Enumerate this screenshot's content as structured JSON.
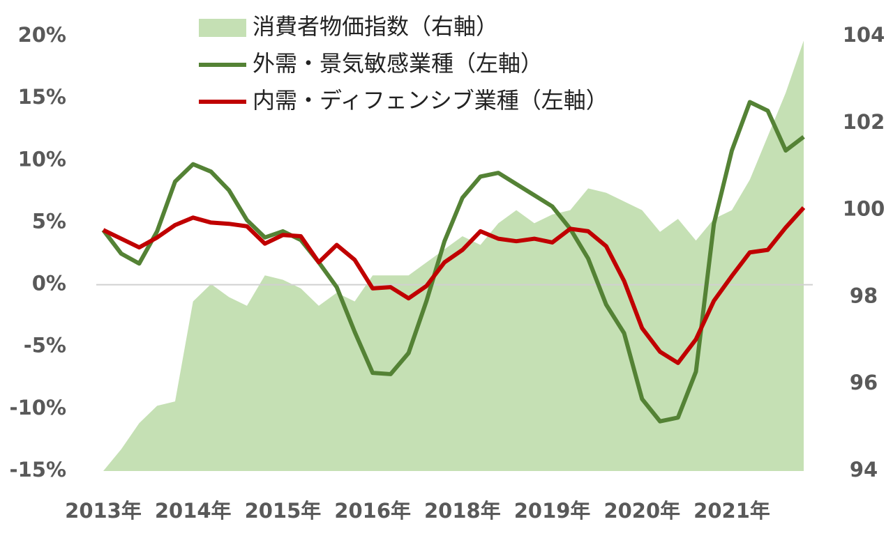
{
  "chart_data": {
    "type": "line",
    "categories": [
      "2013年",
      null,
      null,
      null,
      null,
      "2014年",
      null,
      null,
      null,
      null,
      "2015年",
      null,
      null,
      null,
      null,
      "2016年",
      null,
      null,
      null,
      null,
      "2018年",
      null,
      null,
      null,
      null,
      "2019年",
      null,
      null,
      null,
      null,
      "2020年",
      null,
      null,
      null,
      null,
      "2021年",
      null,
      null,
      null,
      null
    ],
    "series": [
      {
        "name": "消費者物価指数（右軸）",
        "color": "#c5e0b4",
        "axis": "y2",
        "kind": "area",
        "values": [
          94.0,
          94.5,
          95.1,
          95.5,
          95.6,
          97.9,
          98.3,
          98.0,
          97.8,
          98.5,
          98.4,
          98.2,
          97.8,
          98.1,
          97.9,
          98.5,
          98.5,
          98.5,
          98.8,
          99.1,
          99.4,
          99.2,
          99.7,
          100.0,
          99.7,
          99.9,
          100.0,
          100.5,
          100.4,
          100.2,
          100.0,
          99.5,
          99.8,
          99.3,
          99.8,
          100.0,
          100.7,
          101.7,
          102.7,
          103.9
        ]
      },
      {
        "name": "外需・景気敏感業種（左軸）",
        "color": "#548235",
        "values": [
          4.4,
          2.5,
          1.7,
          4.3,
          8.3,
          9.7,
          9.1,
          7.6,
          5.2,
          3.8,
          4.3,
          3.6,
          1.8,
          -0.2,
          -3.8,
          -7.1,
          -7.2,
          -5.5,
          -1.3,
          3.5,
          7.0,
          8.7,
          9.0,
          8.1,
          7.2,
          6.3,
          4.5,
          2.1,
          -1.6,
          -3.9,
          -9.2,
          -11.0,
          -10.7,
          -7.0,
          4.9,
          10.8,
          14.7,
          14.0,
          10.8,
          11.9
        ]
      },
      {
        "name": "内需・ディフェンシブ業種（左軸）",
        "color": "#c00000",
        "values": [
          4.4,
          3.7,
          3.0,
          3.8,
          4.8,
          5.4,
          5.0,
          4.9,
          4.7,
          3.3,
          4.0,
          3.9,
          1.8,
          3.2,
          2.0,
          -0.3,
          -0.2,
          -1.1,
          -0.1,
          1.8,
          2.8,
          4.3,
          3.7,
          3.5,
          3.7,
          3.4,
          4.5,
          4.3,
          3.1,
          0.3,
          -3.5,
          -5.4,
          -6.3,
          -4.4,
          -1.3,
          0.7,
          2.6,
          2.8,
          4.6,
          6.2
        ]
      }
    ],
    "ylim": [
      -15,
      20
    ],
    "yticks": [
      {
        "value": -15,
        "label": "-15%"
      },
      {
        "value": -10,
        "label": "-10%"
      },
      {
        "value": -5,
        "label": "-5%"
      },
      {
        "value": 0,
        "label": "0%"
      },
      {
        "value": 5,
        "label": "5%"
      },
      {
        "value": 10,
        "label": "10%"
      },
      {
        "value": 15,
        "label": "15%"
      },
      {
        "value": 20,
        "label": "20%"
      }
    ],
    "y2lim": [
      94,
      104
    ],
    "y2ticks": [
      94,
      96,
      98,
      100,
      102,
      104
    ]
  }
}
